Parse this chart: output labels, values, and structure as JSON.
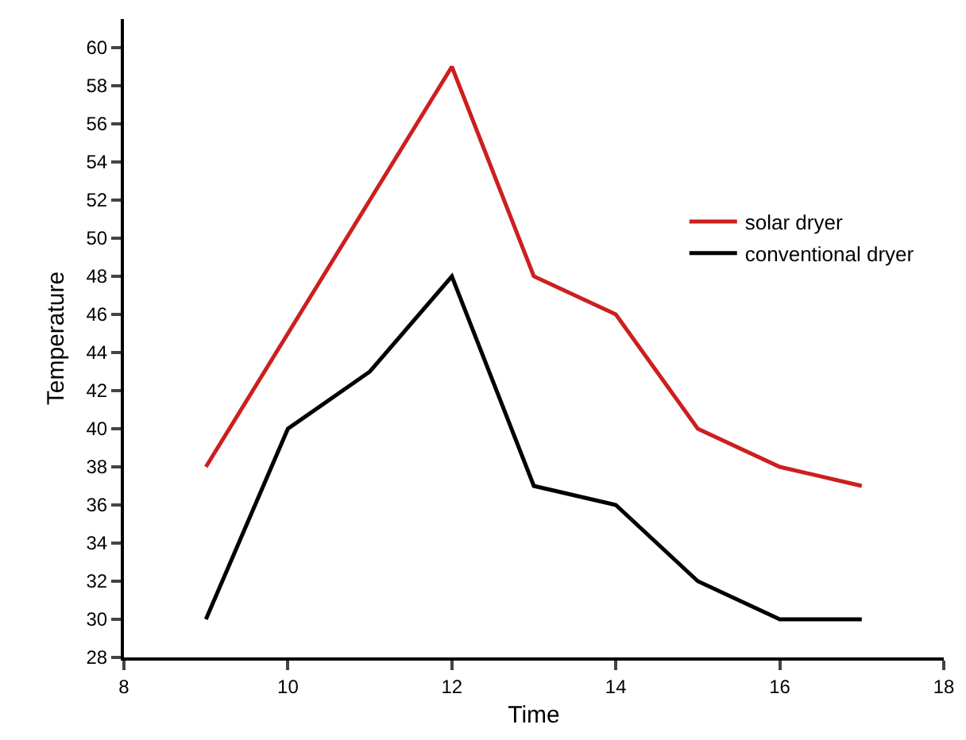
{
  "chart_data": {
    "type": "line",
    "xlabel": "Time",
    "ylabel": "Temperature",
    "x": [
      9,
      10,
      11,
      12,
      13,
      14,
      15,
      16,
      17
    ],
    "series": [
      {
        "name": "solar dryer",
        "color": "#cc1f1f",
        "values": [
          38,
          45,
          52,
          59,
          48,
          46,
          40,
          38,
          37
        ]
      },
      {
        "name": "conventional dryer",
        "color": "#000000",
        "values": [
          30,
          40,
          43,
          48,
          37,
          36,
          32,
          30,
          30
        ]
      }
    ],
    "xlim": [
      8,
      18
    ],
    "xticks": [
      8,
      10,
      12,
      14,
      16,
      18
    ],
    "ylim": [
      28,
      61.5
    ],
    "yticks": [
      28,
      30,
      32,
      34,
      36,
      38,
      40,
      42,
      44,
      46,
      48,
      50,
      52,
      54,
      56,
      58,
      60
    ],
    "grid": false,
    "legend": "top right",
    "marker": "none",
    "line_style": "solid"
  }
}
